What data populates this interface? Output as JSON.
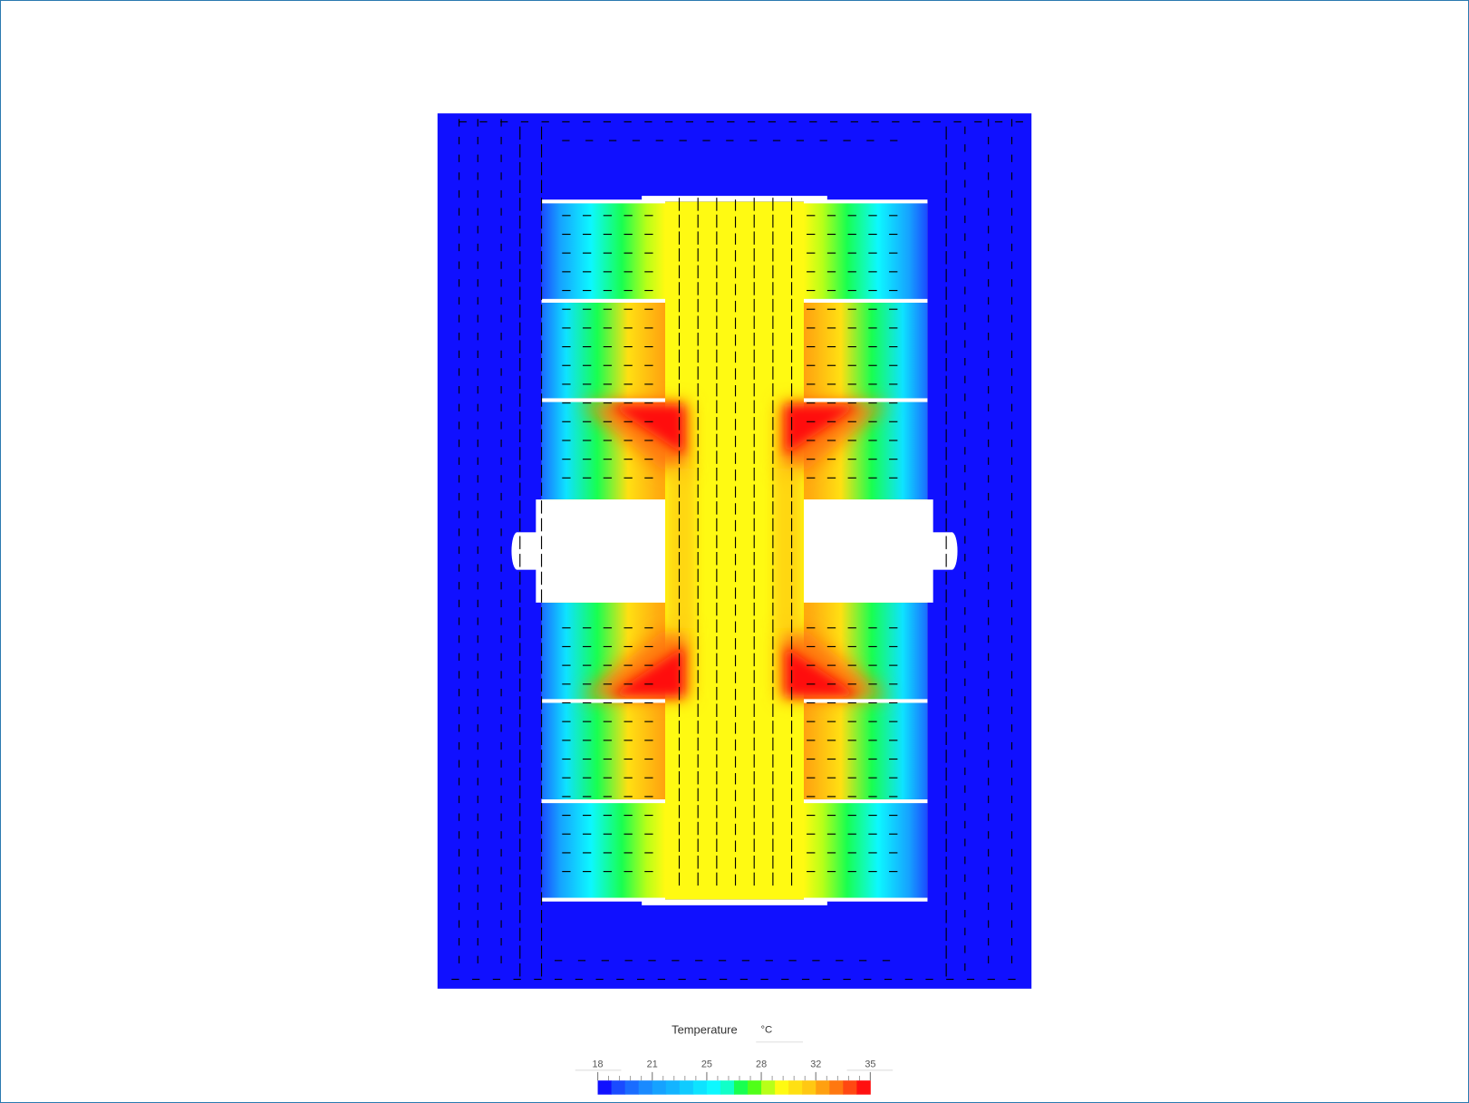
{
  "chart_data": {
    "type": "heatmap",
    "title": "",
    "colorbar": {
      "label": "Temperature",
      "unit": "°C",
      "range": [
        18,
        35
      ],
      "ticks": [
        "18",
        "21",
        "25",
        "28",
        "32",
        "35"
      ],
      "colors": [
        "#1010ff",
        "#1a4bff",
        "#1a6cff",
        "#1a8aff",
        "#16a2ff",
        "#13b4ff",
        "#10cbff",
        "#0ee3ff",
        "#0df8ff",
        "#10ffc8",
        "#18ff50",
        "#50ff18",
        "#b8ff18",
        "#fffa12",
        "#ffe012",
        "#ffc812",
        "#ffa010",
        "#ff7810",
        "#ff4812",
        "#ff1010"
      ]
    },
    "field": "temperature contour with velocity vectors",
    "background_color": "#1010ff"
  }
}
